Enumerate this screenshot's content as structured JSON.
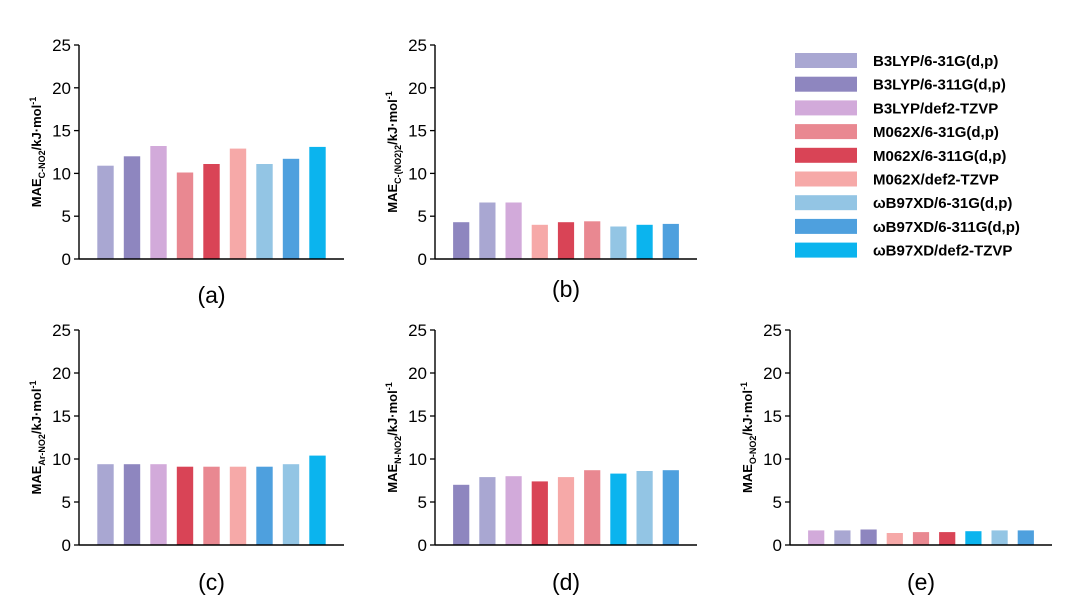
{
  "colors": {
    "b3lyp_631": "#a9a7d2",
    "b3lyp_6311": "#8e86bf",
    "b3lyp_def2": "#d2aada",
    "m062x_631": "#e98891",
    "m062x_6311": "#d94456",
    "m062x_def2": "#f6a9a8",
    "wb97xd_631": "#93c5e4",
    "wb97xd_6311": "#4ea0de",
    "wb97xd_def2": "#0bb4ee"
  },
  "legend": [
    {
      "label": "B3LYP/6-31G(d,p)",
      "color_key": "b3lyp_631"
    },
    {
      "label": "B3LYP/6-311G(d,p)",
      "color_key": "b3lyp_6311"
    },
    {
      "label": "B3LYP/def2-TZVP",
      "color_key": "b3lyp_def2"
    },
    {
      "label": "M062X/6-31G(d,p)",
      "color_key": "m062x_631"
    },
    {
      "label": "M062X/6-311G(d,p)",
      "color_key": "m062x_6311"
    },
    {
      "label": "M062X/def2-TZVP",
      "color_key": "m062x_def2"
    },
    {
      "label": "ωB97XD/6-31G(d,p)",
      "color_key": "wb97xd_631"
    },
    {
      "label": "ωB97XD/6-311G(d,p)",
      "color_key": "wb97xd_6311"
    },
    {
      "label": "ωB97XD/def2-TZVP",
      "color_key": "wb97xd_def2"
    }
  ],
  "chart_data": [
    {
      "type": "bar",
      "panel": "(a)",
      "ylabel": {
        "main": "MAE",
        "sub": "C-NO2",
        "unit": "/kJ·mol",
        "sup": "-1"
      },
      "ylim": [
        0,
        25
      ],
      "yticks": [
        0,
        5,
        10,
        15,
        20,
        25
      ],
      "values": [
        10.9,
        12.0,
        13.2,
        10.1,
        11.1,
        12.9,
        11.1,
        11.7,
        13.1
      ],
      "colors": [
        "b3lyp_631",
        "b3lyp_6311",
        "b3lyp_def2",
        "m062x_631",
        "m062x_6311",
        "m062x_def2",
        "wb97xd_631",
        "wb97xd_6311",
        "wb97xd_def2"
      ]
    },
    {
      "type": "bar",
      "panel": "(b)",
      "ylabel": {
        "main": "MAE",
        "sub": "C-(NO2)2",
        "unit": "/kJ·mol",
        "sup": "-1"
      },
      "ylim": [
        0,
        25
      ],
      "yticks": [
        0,
        5,
        10,
        15,
        20,
        25
      ],
      "values": [
        4.3,
        6.6,
        6.6,
        4.0,
        4.3,
        4.4,
        3.8,
        4.0,
        4.1
      ],
      "colors": [
        "b3lyp_6311",
        "b3lyp_631",
        "b3lyp_def2",
        "m062x_def2",
        "m062x_6311",
        "m062x_631",
        "wb97xd_631",
        "wb97xd_def2",
        "wb97xd_6311"
      ]
    },
    {
      "type": "bar",
      "panel": "(c)",
      "ylabel": {
        "main": "MAE",
        "sub": "Ar-NO2",
        "unit": "/kJ·mol",
        "sup": "-1"
      },
      "ylim": [
        0,
        25
      ],
      "yticks": [
        0,
        5,
        10,
        15,
        20,
        25
      ],
      "values": [
        9.4,
        9.4,
        9.4,
        9.1,
        9.1,
        9.1,
        9.1,
        9.4,
        10.4
      ],
      "colors": [
        "b3lyp_631",
        "b3lyp_6311",
        "b3lyp_def2",
        "m062x_6311",
        "m062x_631",
        "m062x_def2",
        "wb97xd_6311",
        "wb97xd_631",
        "wb97xd_def2"
      ]
    },
    {
      "type": "bar",
      "panel": "(d)",
      "ylabel": {
        "main": "MAE",
        "sub": "N-NO2",
        "unit": "/kJ·mol",
        "sup": "-1"
      },
      "ylim": [
        0,
        25
      ],
      "yticks": [
        0,
        5,
        10,
        15,
        20,
        25
      ],
      "values": [
        7.0,
        7.9,
        8.0,
        7.4,
        7.9,
        8.7,
        8.3,
        8.6,
        8.7
      ],
      "colors": [
        "b3lyp_6311",
        "b3lyp_631",
        "b3lyp_def2",
        "m062x_6311",
        "m062x_def2",
        "m062x_631",
        "wb97xd_def2",
        "wb97xd_631",
        "wb97xd_6311"
      ]
    },
    {
      "type": "bar",
      "panel": "(e)",
      "ylabel": {
        "main": "MAE",
        "sub": "O-NO2",
        "unit": "/kJ·mol",
        "sup": "-1"
      },
      "ylim": [
        0,
        25
      ],
      "yticks": [
        0,
        5,
        10,
        15,
        20,
        25
      ],
      "values": [
        1.7,
        1.7,
        1.8,
        1.4,
        1.5,
        1.5,
        1.6,
        1.7,
        1.7
      ],
      "colors": [
        "b3lyp_def2",
        "b3lyp_631",
        "b3lyp_6311",
        "m062x_def2",
        "m062x_631",
        "m062x_6311",
        "wb97xd_def2",
        "wb97xd_631",
        "wb97xd_6311"
      ]
    }
  ]
}
